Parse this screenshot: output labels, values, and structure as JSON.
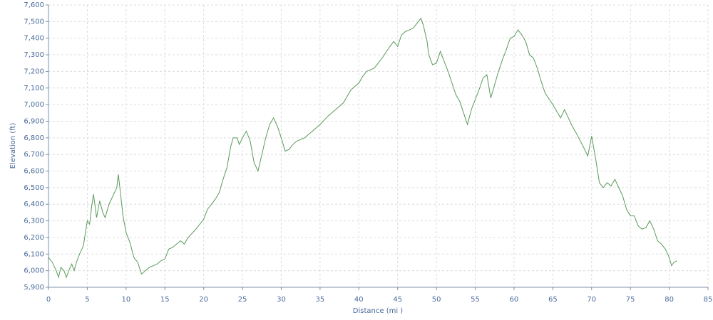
{
  "chart_data": {
    "type": "line",
    "x_label": "Distance (mi )",
    "y_label": "Elevation (ft)",
    "grid": true,
    "xlim": [
      0,
      85
    ],
    "xticks": [
      0,
      5,
      10,
      15,
      20,
      25,
      30,
      35,
      40,
      45,
      50,
      55,
      60,
      65,
      70,
      75,
      80,
      85
    ],
    "ylim": [
      5900,
      7600
    ],
    "yticks": [
      {
        "value": 5900,
        "label": "5,900"
      },
      {
        "value": 6000,
        "label": "6,000"
      },
      {
        "value": 6100,
        "label": "6,100"
      },
      {
        "value": 6200,
        "label": "6,200"
      },
      {
        "value": 6300,
        "label": "6,300"
      },
      {
        "value": 6400,
        "label": "6,400"
      },
      {
        "value": 6500,
        "label": "6,500"
      },
      {
        "value": 6600,
        "label": "6,600"
      },
      {
        "value": 6700,
        "label": "6,700"
      },
      {
        "value": 6800,
        "label": "6,800"
      },
      {
        "value": 6900,
        "label": "6,900"
      },
      {
        "value": 7000,
        "label": "7,000"
      },
      {
        "value": 7100,
        "label": "7,100"
      },
      {
        "value": 7200,
        "label": "7,200"
      },
      {
        "value": 7300,
        "label": "7,300"
      },
      {
        "value": 7400,
        "label": "7,400"
      },
      {
        "value": 7500,
        "label": "7,500"
      },
      {
        "value": 7600,
        "label": "7,600"
      }
    ],
    "x": [
      0,
      0.5,
      1,
      1.3,
      1.6,
      2,
      2.3,
      2.7,
      3,
      3.3,
      3.6,
      4,
      4.5,
      5,
      5.3,
      5.6,
      5.8,
      6.2,
      6.6,
      7,
      7.3,
      7.8,
      8.3,
      8.8,
      9,
      9.2,
      9.6,
      10,
      10.5,
      11,
      11.5,
      12,
      12.5,
      13,
      14,
      14.5,
      15,
      15.5,
      16,
      16.5,
      17,
      17.5,
      18,
      19,
      20,
      20.5,
      21,
      21.5,
      22,
      22.5,
      23,
      23.5,
      23.8,
      24.3,
      24.6,
      25,
      25.5,
      26,
      26.5,
      27,
      27.5,
      28,
      28.5,
      29,
      29.5,
      30,
      30.5,
      31,
      31.5,
      32,
      33,
      34,
      35,
      36,
      37,
      38,
      39,
      40,
      40.5,
      41,
      42,
      43,
      44,
      44.5,
      45,
      45.5,
      46,
      46.5,
      47,
      47.5,
      48,
      48.3,
      48.8,
      49,
      49.5,
      50,
      50.5,
      51,
      51.5,
      52,
      52.5,
      53,
      53.5,
      54,
      54.5,
      55,
      55.5,
      56,
      56.5,
      57,
      57.5,
      58,
      58.5,
      59,
      59.5,
      60,
      60.5,
      61,
      61.5,
      62,
      62.5,
      63,
      63.5,
      64,
      65,
      65.5,
      66,
      66.5,
      67,
      67.5,
      68,
      69,
      69.5,
      70,
      70.5,
      71,
      71.5,
      72,
      72.5,
      73,
      73.5,
      74,
      74.5,
      75,
      75.5,
      76,
      76.5,
      77,
      77.5,
      78,
      78.5,
      79,
      79.5,
      80,
      80.3,
      80.6,
      81
    ],
    "series": [
      {
        "color": "#5a9a5a",
        "values": [
          6080,
          6050,
          6000,
          5960,
          6020,
          6000,
          5960,
          6010,
          6040,
          6000,
          6050,
          6100,
          6150,
          6300,
          6280,
          6400,
          6460,
          6320,
          6420,
          6350,
          6320,
          6400,
          6450,
          6500,
          6580,
          6500,
          6330,
          6230,
          6170,
          6080,
          6050,
          5980,
          6000,
          6020,
          6040,
          6060,
          6070,
          6130,
          6140,
          6160,
          6180,
          6160,
          6200,
          6250,
          6310,
          6370,
          6400,
          6430,
          6470,
          6550,
          6620,
          6750,
          6800,
          6800,
          6760,
          6800,
          6840,
          6780,
          6650,
          6600,
          6700,
          6800,
          6880,
          6920,
          6870,
          6800,
          6720,
          6730,
          6760,
          6780,
          6800,
          6840,
          6880,
          6930,
          6970,
          7010,
          7090,
          7130,
          7170,
          7200,
          7220,
          7280,
          7350,
          7380,
          7350,
          7420,
          7440,
          7450,
          7460,
          7490,
          7520,
          7480,
          7380,
          7300,
          7240,
          7250,
          7320,
          7260,
          7200,
          7130,
          7060,
          7020,
          6950,
          6880,
          6970,
          7030,
          7090,
          7160,
          7180,
          7040,
          7120,
          7200,
          7270,
          7330,
          7400,
          7410,
          7450,
          7420,
          7380,
          7300,
          7280,
          7220,
          7140,
          7070,
          7000,
          6960,
          6920,
          6970,
          6920,
          6870,
          6830,
          6740,
          6690,
          6810,
          6680,
          6530,
          6500,
          6530,
          6510,
          6550,
          6500,
          6450,
          6370,
          6330,
          6330,
          6270,
          6250,
          6260,
          6300,
          6250,
          6180,
          6160,
          6130,
          6080,
          6030,
          6050,
          6060
        ]
      }
    ]
  }
}
